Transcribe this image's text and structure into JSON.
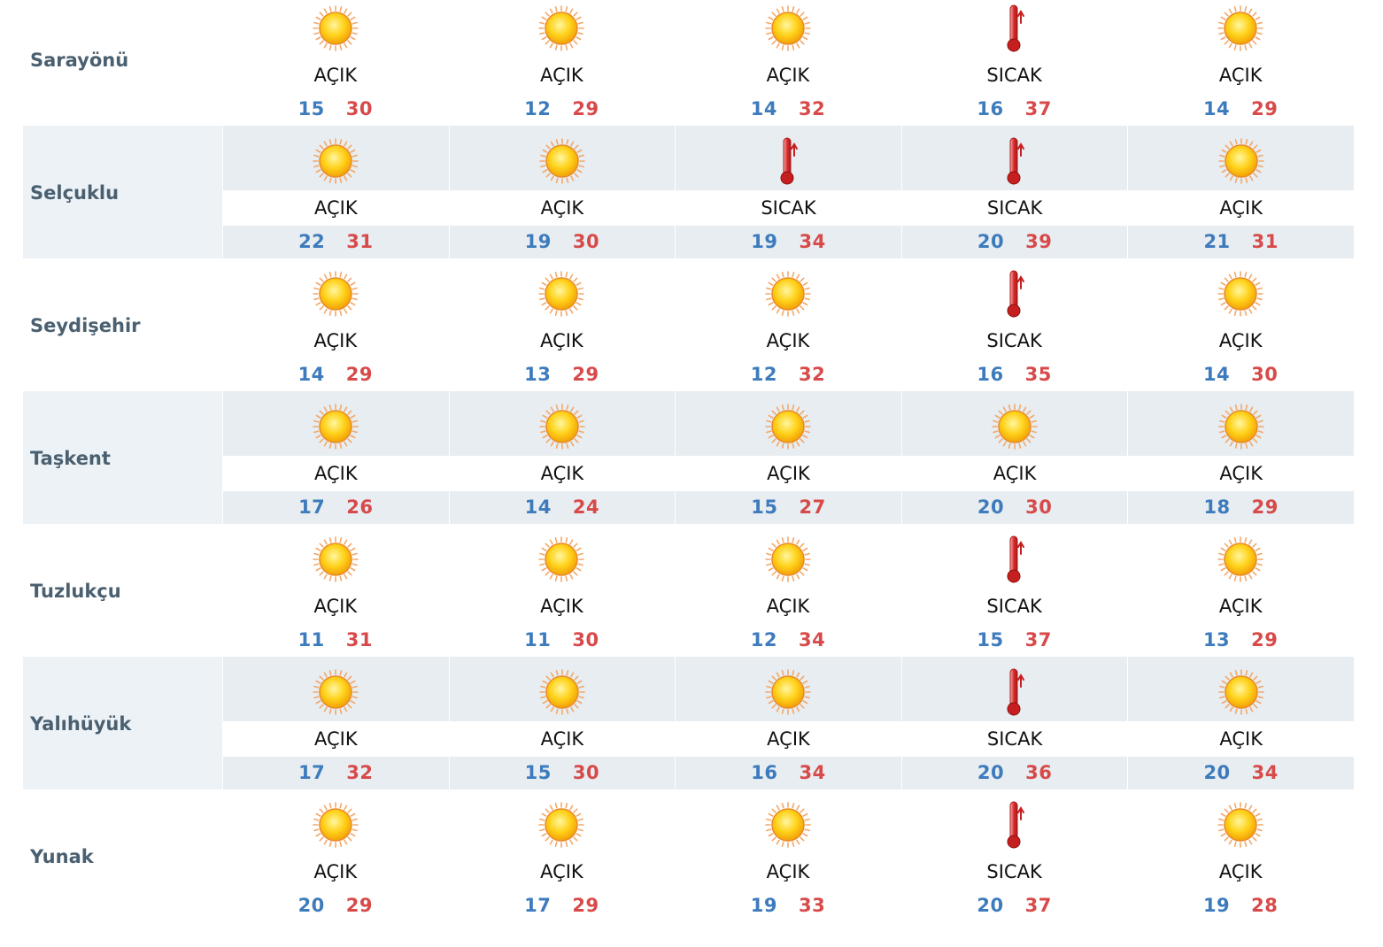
{
  "icons": {
    "sunny": "sun-icon",
    "hot": "thermometer-icon"
  },
  "colors": {
    "min_temp": "#3d7bbd",
    "max_temp": "#d84a4a",
    "city": "#4a6070",
    "shade": "#e7edf1"
  },
  "rows": [
    {
      "city": "Sarayönü",
      "days": [
        {
          "icon": "sun",
          "cond": "AÇIK",
          "min": "15",
          "max": "30"
        },
        {
          "icon": "sun",
          "cond": "AÇIK",
          "min": "12",
          "max": "29"
        },
        {
          "icon": "sun",
          "cond": "AÇIK",
          "min": "14",
          "max": "32"
        },
        {
          "icon": "thermo",
          "cond": "SICAK",
          "min": "16",
          "max": "37"
        },
        {
          "icon": "sun",
          "cond": "AÇIK",
          "min": "14",
          "max": "29"
        }
      ]
    },
    {
      "city": "Selçuklu",
      "days": [
        {
          "icon": "sun",
          "cond": "AÇIK",
          "min": "22",
          "max": "31"
        },
        {
          "icon": "sun",
          "cond": "AÇIK",
          "min": "19",
          "max": "30"
        },
        {
          "icon": "thermo",
          "cond": "SICAK",
          "min": "19",
          "max": "34"
        },
        {
          "icon": "thermo",
          "cond": "SICAK",
          "min": "20",
          "max": "39"
        },
        {
          "icon": "sun",
          "cond": "AÇIK",
          "min": "21",
          "max": "31"
        }
      ]
    },
    {
      "city": "Seydişehir",
      "days": [
        {
          "icon": "sun",
          "cond": "AÇIK",
          "min": "14",
          "max": "29"
        },
        {
          "icon": "sun",
          "cond": "AÇIK",
          "min": "13",
          "max": "29"
        },
        {
          "icon": "sun",
          "cond": "AÇIK",
          "min": "12",
          "max": "32"
        },
        {
          "icon": "thermo",
          "cond": "SICAK",
          "min": "16",
          "max": "35"
        },
        {
          "icon": "sun",
          "cond": "AÇIK",
          "min": "14",
          "max": "30"
        }
      ]
    },
    {
      "city": "Taşkent",
      "days": [
        {
          "icon": "sun",
          "cond": "AÇIK",
          "min": "17",
          "max": "26"
        },
        {
          "icon": "sun",
          "cond": "AÇIK",
          "min": "14",
          "max": "24"
        },
        {
          "icon": "sun",
          "cond": "AÇIK",
          "min": "15",
          "max": "27"
        },
        {
          "icon": "sun",
          "cond": "AÇIK",
          "min": "20",
          "max": "30"
        },
        {
          "icon": "sun",
          "cond": "AÇIK",
          "min": "18",
          "max": "29"
        }
      ]
    },
    {
      "city": "Tuzlukçu",
      "days": [
        {
          "icon": "sun",
          "cond": "AÇIK",
          "min": "11",
          "max": "31"
        },
        {
          "icon": "sun",
          "cond": "AÇIK",
          "min": "11",
          "max": "30"
        },
        {
          "icon": "sun",
          "cond": "AÇIK",
          "min": "12",
          "max": "34"
        },
        {
          "icon": "thermo",
          "cond": "SICAK",
          "min": "15",
          "max": "37"
        },
        {
          "icon": "sun",
          "cond": "AÇIK",
          "min": "13",
          "max": "29"
        }
      ]
    },
    {
      "city": "Yalıhüyük",
      "days": [
        {
          "icon": "sun",
          "cond": "AÇIK",
          "min": "17",
          "max": "32"
        },
        {
          "icon": "sun",
          "cond": "AÇIK",
          "min": "15",
          "max": "30"
        },
        {
          "icon": "sun",
          "cond": "AÇIK",
          "min": "16",
          "max": "34"
        },
        {
          "icon": "thermo",
          "cond": "SICAK",
          "min": "20",
          "max": "36"
        },
        {
          "icon": "sun",
          "cond": "AÇIK",
          "min": "20",
          "max": "34"
        }
      ]
    },
    {
      "city": "Yunak",
      "days": [
        {
          "icon": "sun",
          "cond": "AÇIK",
          "min": "20",
          "max": "29"
        },
        {
          "icon": "sun",
          "cond": "AÇIK",
          "min": "17",
          "max": "29"
        },
        {
          "icon": "sun",
          "cond": "AÇIK",
          "min": "19",
          "max": "33"
        },
        {
          "icon": "thermo",
          "cond": "SICAK",
          "min": "20",
          "max": "37"
        },
        {
          "icon": "sun",
          "cond": "AÇIK",
          "min": "19",
          "max": "28"
        }
      ]
    }
  ]
}
